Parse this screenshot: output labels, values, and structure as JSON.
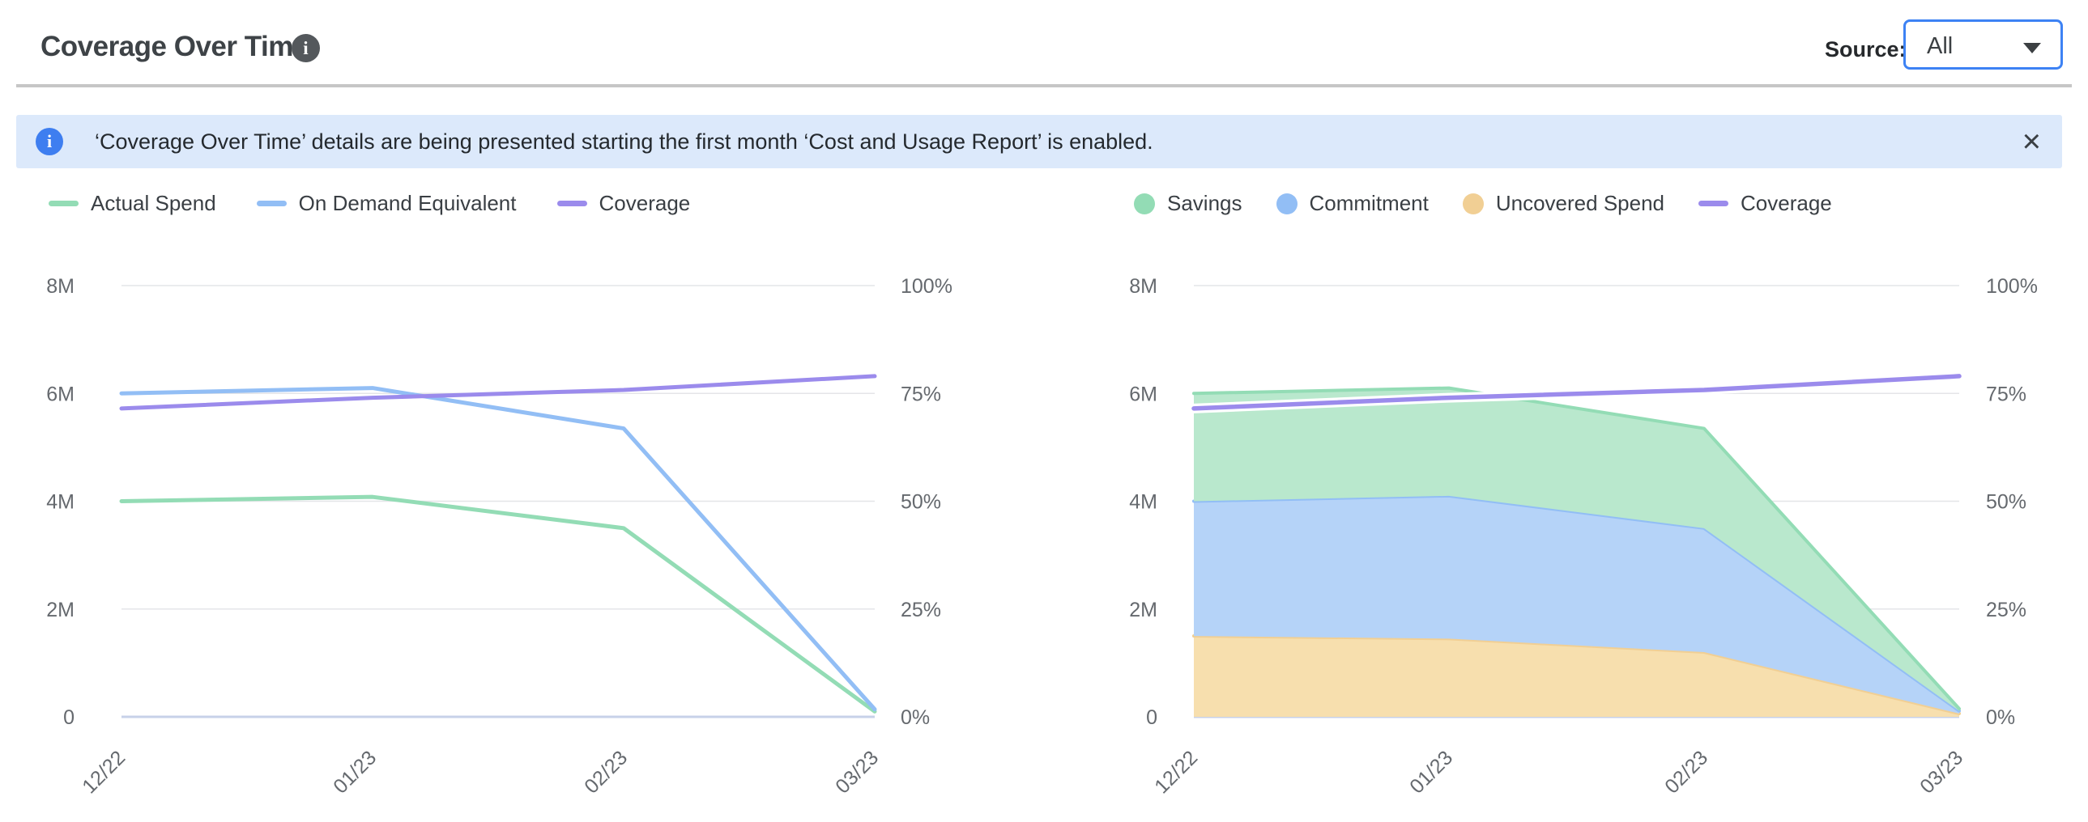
{
  "header": {
    "title": "Coverage Over Time",
    "info_icon": "i",
    "source_label": "Source:",
    "source_value": "All"
  },
  "banner": {
    "info_icon": "i",
    "text": "‘Coverage Over Time’ details are being presented starting the first month ‘Cost and Usage Report’ is enabled.",
    "close_icon": "×"
  },
  "colors": {
    "green_line": "#93dcb5",
    "green_fill": "#b9e8cd",
    "blue_line": "#92bef5",
    "blue_fill": "#b5d3f8",
    "orange_line": "#f1cf94",
    "orange_fill": "#f7dfae",
    "purple_line": "#9b8bec",
    "grid_line": "#e4e5e8",
    "zero_line": "#c7d1e8",
    "axis_text": "#65696e",
    "accent_blue": "#3d82f4",
    "banner_bg": "#dce9fb"
  },
  "chart_data": [
    {
      "type": "line",
      "x": [
        "12/22",
        "01/23",
        "02/23",
        "03/23"
      ],
      "y_left_axis": {
        "labels": [
          "8M",
          "6M",
          "4M",
          "2M",
          "0"
        ],
        "max_millions": 8,
        "min": 0
      },
      "y_right_axis": {
        "labels": [
          "100%",
          "75%",
          "50%",
          "25%",
          "0%"
        ],
        "max_pct": 100,
        "min": 0
      },
      "grid": true,
      "legend_position": "top-left",
      "series": [
        {
          "name": "Actual Spend",
          "axis": "left",
          "swatch": "line",
          "color": "#93dcb5",
          "values_millions": [
            4.0,
            4.08,
            3.5,
            0.1
          ]
        },
        {
          "name": "On Demand Equivalent",
          "axis": "left",
          "swatch": "line",
          "color": "#92bef5",
          "values_millions": [
            6.0,
            6.1,
            5.35,
            0.14
          ]
        },
        {
          "name": "Coverage",
          "axis": "right",
          "swatch": "line",
          "color": "#9b8bec",
          "values_pct": [
            71.5,
            74.0,
            75.8,
            79.0
          ]
        }
      ]
    },
    {
      "type": "area",
      "x": [
        "12/22",
        "01/23",
        "02/23",
        "03/23"
      ],
      "y_left_axis": {
        "labels": [
          "8M",
          "6M",
          "4M",
          "2M",
          "0"
        ],
        "max_millions": 8,
        "min": 0
      },
      "y_right_axis": {
        "labels": [
          "100%",
          "75%",
          "50%",
          "25%",
          "0%"
        ],
        "max_pct": 100,
        "min": 0
      },
      "grid": true,
      "legend_position": "top-left",
      "stacking_note": "areas stacked bottom-to-top: Uncovered Spend, Commitment, Savings",
      "series": [
        {
          "name": "Savings",
          "axis": "left",
          "swatch": "dot",
          "kind": "area",
          "color": "#93dcb5",
          "fill": "#b9e8cd",
          "values_millions": [
            2.0,
            2.0,
            1.85,
            0.04
          ]
        },
        {
          "name": "Commitment",
          "axis": "left",
          "swatch": "dot",
          "kind": "area",
          "color": "#92bef5",
          "fill": "#b5d3f8",
          "values_millions": [
            2.5,
            2.65,
            2.3,
            0.05
          ]
        },
        {
          "name": "Uncovered Spend",
          "axis": "left",
          "swatch": "dot",
          "kind": "area",
          "color": "#f1cf94",
          "fill": "#f7dfae",
          "values_millions": [
            1.5,
            1.45,
            1.2,
            0.06
          ]
        },
        {
          "name": "Coverage",
          "axis": "right",
          "swatch": "line",
          "kind": "line",
          "color": "#9b8bec",
          "values_pct": [
            71.5,
            74.0,
            75.8,
            79.0
          ]
        }
      ]
    }
  ]
}
